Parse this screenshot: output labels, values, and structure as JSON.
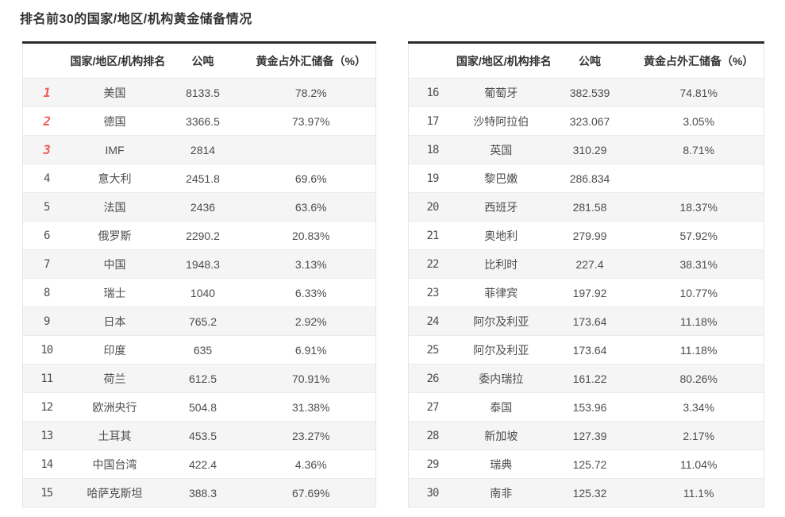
{
  "title": "排名前30的国家/地区/机构黄金储备情况",
  "colors": {
    "rank_top3": "#ed5e5c",
    "rank_gray": "#7d7d7d",
    "row_alt_bg": "#f5f5f5",
    "table_top_border": "#2b2b2b",
    "text": "#4d4d4d"
  },
  "chart_data": [
    {
      "type": "table",
      "columns": [
        "",
        "国家/地区/机构排名",
        "公吨",
        "黄金占外汇储备（%）"
      ],
      "rows": [
        [
          "1",
          "美国",
          "8133.5",
          "78.2%"
        ],
        [
          "2",
          "德国",
          "3366.5",
          "73.97%"
        ],
        [
          "3",
          "IMF",
          "2814",
          ""
        ],
        [
          "4",
          "意大利",
          "2451.8",
          "69.6%"
        ],
        [
          "5",
          "法国",
          "2436",
          "63.6%"
        ],
        [
          "6",
          "俄罗斯",
          "2290.2",
          "20.83%"
        ],
        [
          "7",
          "中国",
          "1948.3",
          "3.13%"
        ],
        [
          "8",
          "瑞士",
          "1040",
          "6.33%"
        ],
        [
          "9",
          "日本",
          "765.2",
          "2.92%"
        ],
        [
          "10",
          "印度",
          "635",
          "6.91%"
        ],
        [
          "11",
          "荷兰",
          "612.5",
          "70.91%"
        ],
        [
          "12",
          "欧洲央行",
          "504.8",
          "31.38%"
        ],
        [
          "13",
          "土耳其",
          "453.5",
          "23.27%"
        ],
        [
          "14",
          "中国台湾",
          "422.4",
          "4.36%"
        ],
        [
          "15",
          "哈萨克斯坦",
          "388.3",
          "67.69%"
        ]
      ]
    },
    {
      "type": "table",
      "columns": [
        "",
        "国家/地区/机构排名",
        "公吨",
        "黄金占外汇储备（%）"
      ],
      "rows": [
        [
          "16",
          "葡萄牙",
          "382.539",
          "74.81%"
        ],
        [
          "17",
          "沙特阿拉伯",
          "323.067",
          "3.05%"
        ],
        [
          "18",
          "英国",
          "310.29",
          "8.71%"
        ],
        [
          "19",
          "黎巴嫩",
          "286.834",
          ""
        ],
        [
          "20",
          "西班牙",
          "281.58",
          "18.37%"
        ],
        [
          "21",
          "奥地利",
          "279.99",
          "57.92%"
        ],
        [
          "22",
          "比利时",
          "227.4",
          "38.31%"
        ],
        [
          "23",
          "菲律宾",
          "197.92",
          "10.77%"
        ],
        [
          "24",
          "阿尔及利亚",
          "173.64",
          "11.18%"
        ],
        [
          "25",
          "阿尔及利亚",
          "173.64",
          "11.18%"
        ],
        [
          "26",
          "委内瑞拉",
          "161.22",
          "80.26%"
        ],
        [
          "27",
          "泰国",
          "153.96",
          "3.34%"
        ],
        [
          "28",
          "新加坡",
          "127.39",
          "2.17%"
        ],
        [
          "29",
          "瑞典",
          "125.72",
          "11.04%"
        ],
        [
          "30",
          "南非",
          "125.32",
          "11.1%"
        ]
      ]
    }
  ]
}
